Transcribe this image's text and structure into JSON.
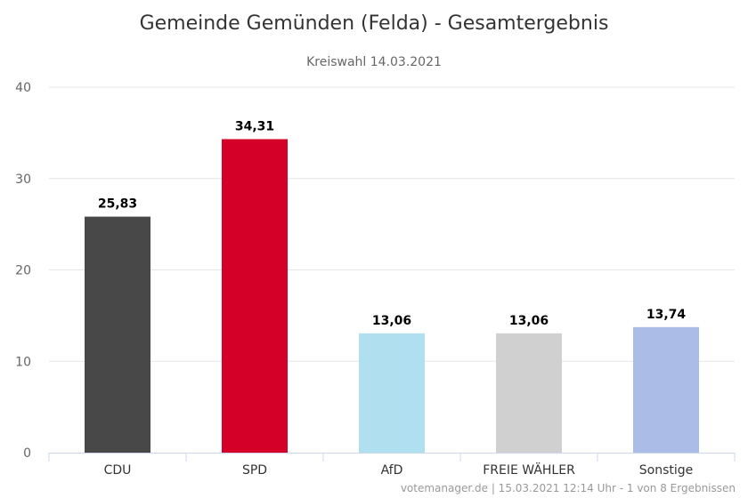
{
  "chart_data": {
    "type": "bar",
    "title": "Gemeinde Gemünden (Felda) - Gesamtergebnis",
    "subtitle": "Kreiswahl 14.03.2021",
    "categories": [
      "CDU",
      "SPD",
      "AfD",
      "FREIE WÄHLER",
      "Sonstige"
    ],
    "values": [
      25.83,
      34.31,
      13.06,
      13.06,
      13.74
    ],
    "value_labels": [
      "25,83",
      "34,31",
      "13,06",
      "13,06",
      "13,74"
    ],
    "colors": [
      "#484848",
      "#d50027",
      "#b0dfef",
      "#d0d0d0",
      "#abbde6"
    ],
    "ylim": [
      0,
      40
    ],
    "yticks": [
      0,
      10,
      20,
      30,
      40
    ],
    "grid": true,
    "credits": "votemanager.de | 15.03.2021 12:14 Uhr - 1 von 8 Ergebnissen"
  }
}
